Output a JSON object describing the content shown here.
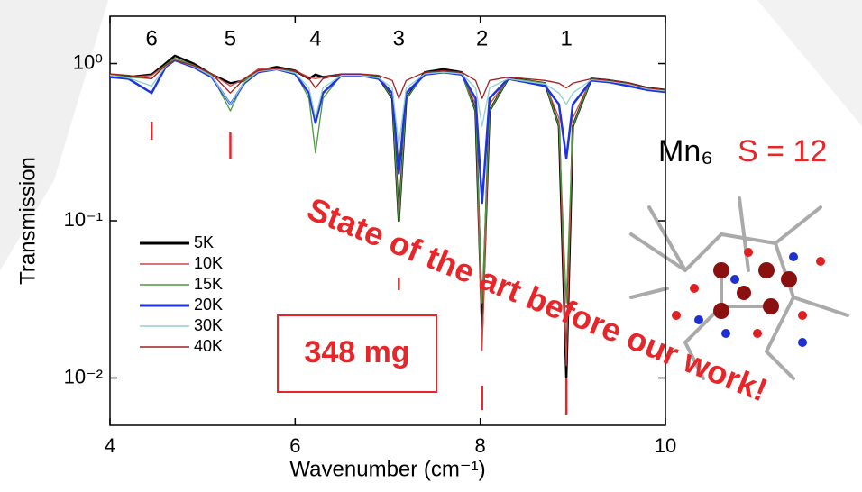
{
  "chart_data": {
    "type": "line",
    "log_y": true,
    "x_label": "Wavenumber (cm⁻¹)",
    "y_label": "Transmission",
    "xlim": [
      4,
      10
    ],
    "xticks": [
      4,
      6,
      8,
      10
    ],
    "ylim": [
      0.005,
      2
    ],
    "yticks": [
      {
        "value": 1,
        "label": "10⁰"
      },
      {
        "value": 0.1,
        "label": "10⁻¹"
      },
      {
        "value": 0.01,
        "label": "10⁻²"
      }
    ],
    "x": [
      4.0,
      4.2,
      4.45,
      4.6,
      4.7,
      4.9,
      5.1,
      5.3,
      5.45,
      5.6,
      5.8,
      6.0,
      6.15,
      6.22,
      6.3,
      6.5,
      6.7,
      6.9,
      7.05,
      7.12,
      7.2,
      7.4,
      7.6,
      7.8,
      7.95,
      8.02,
      8.1,
      8.3,
      8.5,
      8.7,
      8.85,
      8.93,
      9.0,
      9.2,
      9.4,
      9.6,
      9.8,
      10.0
    ],
    "series": [
      {
        "name": "5K",
        "color": "#000000",
        "values": [
          0.85,
          0.82,
          0.85,
          1.0,
          1.12,
          1.0,
          0.85,
          0.75,
          0.78,
          0.9,
          0.95,
          0.9,
          0.8,
          0.85,
          0.82,
          0.85,
          0.85,
          0.82,
          0.6,
          0.1,
          0.6,
          0.88,
          0.92,
          0.88,
          0.5,
          0.02,
          0.5,
          0.8,
          0.78,
          0.75,
          0.4,
          0.01,
          0.4,
          0.8,
          0.78,
          0.75,
          0.7,
          0.68
        ]
      },
      {
        "name": "10K",
        "color": "#d04848",
        "values": [
          0.85,
          0.82,
          0.84,
          0.98,
          1.08,
          0.98,
          0.86,
          0.72,
          0.8,
          0.92,
          0.93,
          0.9,
          0.82,
          0.8,
          0.82,
          0.85,
          0.85,
          0.82,
          0.65,
          0.1,
          0.65,
          0.86,
          0.9,
          0.86,
          0.55,
          0.015,
          0.55,
          0.8,
          0.78,
          0.75,
          0.45,
          0.012,
          0.45,
          0.8,
          0.78,
          0.75,
          0.7,
          0.68
        ]
      },
      {
        "name": "15K",
        "color": "#4a9a3a",
        "values": [
          0.85,
          0.82,
          0.8,
          0.98,
          1.08,
          0.98,
          0.84,
          0.5,
          0.78,
          0.9,
          0.93,
          0.88,
          0.6,
          0.27,
          0.6,
          0.85,
          0.85,
          0.82,
          0.6,
          0.1,
          0.6,
          0.86,
          0.9,
          0.86,
          0.5,
          0.03,
          0.5,
          0.8,
          0.78,
          0.75,
          0.4,
          0.03,
          0.4,
          0.8,
          0.78,
          0.75,
          0.7,
          0.68
        ]
      },
      {
        "name": "20K",
        "color": "#1f33e0",
        "values": [
          0.82,
          0.8,
          0.65,
          0.95,
          1.05,
          0.95,
          0.82,
          0.55,
          0.75,
          0.88,
          0.92,
          0.86,
          0.65,
          0.42,
          0.65,
          0.84,
          0.84,
          0.8,
          0.65,
          0.2,
          0.65,
          0.85,
          0.88,
          0.85,
          0.6,
          0.13,
          0.6,
          0.8,
          0.76,
          0.72,
          0.55,
          0.25,
          0.55,
          0.78,
          0.76,
          0.72,
          0.68,
          0.66
        ]
      },
      {
        "name": "30K",
        "color": "#8fcfcf",
        "values": [
          0.84,
          0.81,
          0.72,
          0.96,
          1.06,
          0.96,
          0.83,
          0.55,
          0.76,
          0.89,
          0.92,
          0.87,
          0.7,
          0.45,
          0.7,
          0.84,
          0.84,
          0.81,
          0.7,
          0.3,
          0.7,
          0.86,
          0.88,
          0.86,
          0.7,
          0.4,
          0.7,
          0.8,
          0.77,
          0.74,
          0.65,
          0.55,
          0.65,
          0.79,
          0.77,
          0.74,
          0.69,
          0.67
        ]
      },
      {
        "name": "40K",
        "color": "#a02020",
        "values": [
          0.86,
          0.84,
          0.8,
          0.97,
          1.05,
          0.97,
          0.86,
          0.65,
          0.8,
          0.9,
          0.93,
          0.9,
          0.8,
          0.7,
          0.8,
          0.86,
          0.86,
          0.84,
          0.78,
          0.6,
          0.78,
          0.88,
          0.9,
          0.88,
          0.78,
          0.6,
          0.78,
          0.82,
          0.8,
          0.78,
          0.75,
          0.7,
          0.75,
          0.8,
          0.78,
          0.75,
          0.7,
          0.68
        ]
      }
    ],
    "peak_labels": [
      {
        "label": "6",
        "x": 4.45
      },
      {
        "label": "5",
        "x": 5.3
      },
      {
        "label": "4",
        "x": 6.22
      },
      {
        "label": "3",
        "x": 7.12
      },
      {
        "label": "2",
        "x": 8.02
      },
      {
        "label": "1",
        "x": 8.93
      }
    ],
    "peak_markers": [
      4.45,
      5.3,
      7.12,
      8.02,
      8.93
    ],
    "marker_color": "#e8262a",
    "annotations": {
      "sample_mass": "348 mg",
      "molecule": "Mn₆",
      "spin": "S = 12",
      "banner": "State of the art before our work!"
    }
  }
}
